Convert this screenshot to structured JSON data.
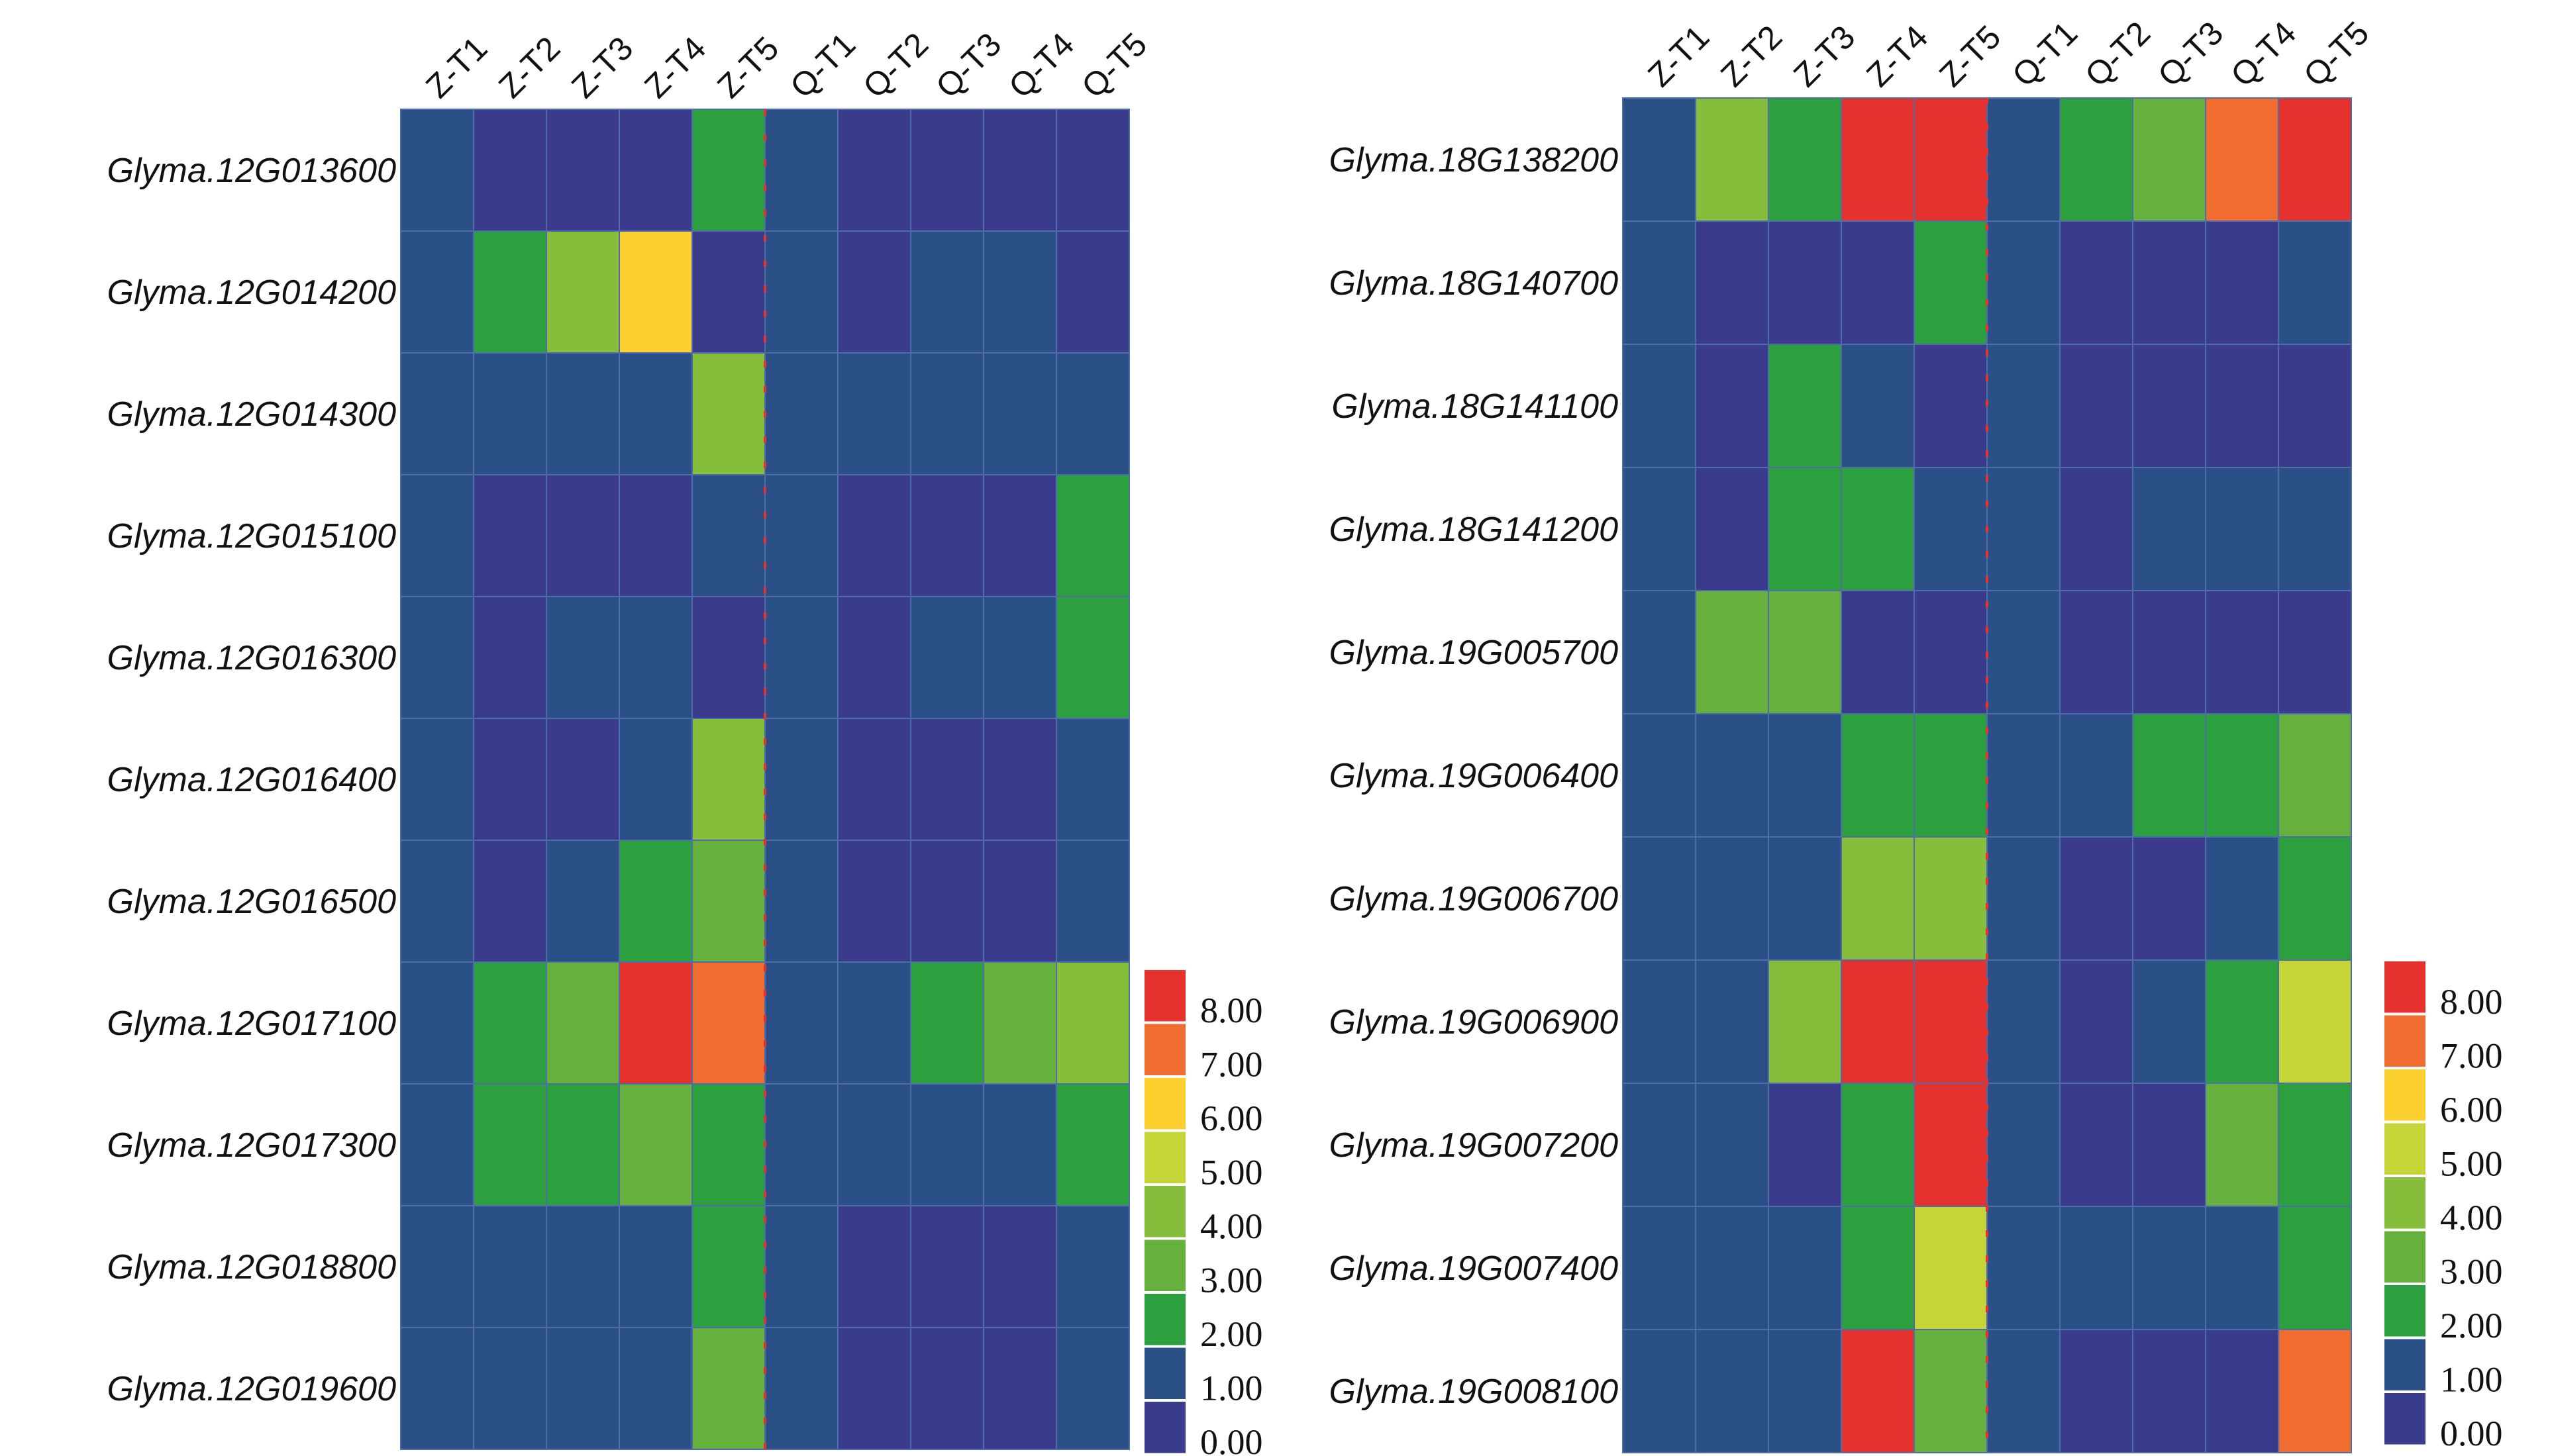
{
  "legend": {
    "bins": [
      {
        "label": "0.00",
        "color": "#3a3b8c"
      },
      {
        "label": "1.00",
        "color": "#2b5087"
      },
      {
        "label": "2.00",
        "color": "#2c9f3f"
      },
      {
        "label": "3.00",
        "color": "#66b03d"
      },
      {
        "label": "4.00",
        "color": "#86bd3b"
      },
      {
        "label": "5.00",
        "color": "#c5d537"
      },
      {
        "label": "6.00",
        "color": "#fcd12f"
      },
      {
        "label": "7.00",
        "color": "#f06c2f"
      },
      {
        "label": "8.00",
        "color": "#e6322f"
      }
    ]
  },
  "chart_data": [
    {
      "type": "heatmap",
      "columns": [
        "Z-T1",
        "Z-T2",
        "Z-T3",
        "Z-T4",
        "Z-T5",
        "Q-T1",
        "Q-T2",
        "Q-T3",
        "Q-T4",
        "Q-T5"
      ],
      "rows": [
        "Glyma.12G013600",
        "Glyma.12G014200",
        "Glyma.12G014300",
        "Glyma.12G015100",
        "Glyma.12G016300",
        "Glyma.12G016400",
        "Glyma.12G016500",
        "Glyma.12G017100",
        "Glyma.12G017300",
        "Glyma.12G018800",
        "Glyma.12G019600"
      ],
      "values": [
        [
          1,
          0,
          0,
          0,
          2,
          1,
          0,
          0,
          0,
          0
        ],
        [
          1,
          2,
          4,
          6,
          0,
          1,
          0,
          1,
          1,
          0
        ],
        [
          1,
          1,
          1,
          1,
          4,
          1,
          1,
          1,
          1,
          1
        ],
        [
          1,
          0,
          0,
          0,
          1,
          1,
          0,
          0,
          0,
          2
        ],
        [
          1,
          0,
          1,
          1,
          0,
          1,
          0,
          1,
          1,
          2
        ],
        [
          1,
          0,
          0,
          1,
          4,
          1,
          0,
          0,
          0,
          1
        ],
        [
          1,
          0,
          1,
          2,
          3,
          1,
          0,
          0,
          0,
          1
        ],
        [
          1,
          2,
          3,
          8,
          7,
          1,
          1,
          2,
          3,
          4
        ],
        [
          1,
          2,
          2,
          3,
          2,
          1,
          1,
          1,
          1,
          2
        ],
        [
          1,
          1,
          1,
          1,
          2,
          1,
          0,
          0,
          0,
          1
        ],
        [
          1,
          1,
          1,
          1,
          3,
          1,
          0,
          0,
          0,
          1
        ]
      ],
      "legend_ticks": [
        "0.00",
        "1.00",
        "2.00",
        "3.00",
        "4.00",
        "5.00",
        "6.00",
        "7.00",
        "8.00"
      ],
      "legend_placement": "bottom-right"
    },
    {
      "type": "heatmap",
      "columns": [
        "Z-T1",
        "Z-T2",
        "Z-T3",
        "Z-T4",
        "Z-T5",
        "Q-T1",
        "Q-T2",
        "Q-T3",
        "Q-T4",
        "Q-T5"
      ],
      "rows": [
        "Glyma.18G138200",
        "Glyma.18G140700",
        "Glyma.18G141100",
        "Glyma.18G141200",
        "Glyma.19G005700",
        "Glyma.19G006400",
        "Glyma.19G006700",
        "Glyma.19G006900",
        "Glyma.19G007200",
        "Glyma.19G007400",
        "Glyma.19G008100"
      ],
      "values": [
        [
          1,
          4,
          2,
          8,
          8,
          1,
          2,
          3,
          7,
          8
        ],
        [
          1,
          0,
          0,
          0,
          2,
          1,
          0,
          0,
          0,
          1
        ],
        [
          1,
          0,
          2,
          1,
          0,
          1,
          0,
          0,
          0,
          0
        ],
        [
          1,
          0,
          2,
          2,
          1,
          1,
          0,
          1,
          1,
          1
        ],
        [
          1,
          3,
          3,
          0,
          0,
          1,
          0,
          0,
          0,
          0
        ],
        [
          1,
          1,
          1,
          2,
          2,
          1,
          1,
          2,
          2,
          3
        ],
        [
          1,
          1,
          1,
          4,
          4,
          1,
          0,
          0,
          1,
          2
        ],
        [
          1,
          1,
          4,
          8,
          8,
          1,
          0,
          1,
          2,
          5
        ],
        [
          1,
          1,
          0,
          2,
          8,
          1,
          0,
          0,
          3,
          2
        ],
        [
          1,
          1,
          1,
          2,
          5,
          1,
          1,
          1,
          1,
          2
        ],
        [
          1,
          1,
          1,
          8,
          3,
          1,
          0,
          0,
          0,
          7
        ]
      ],
      "legend_ticks": [
        "0.00",
        "1.00",
        "2.00",
        "3.00",
        "4.00",
        "5.00",
        "6.00",
        "7.00",
        "8.00"
      ],
      "legend_placement": "bottom-right"
    }
  ]
}
